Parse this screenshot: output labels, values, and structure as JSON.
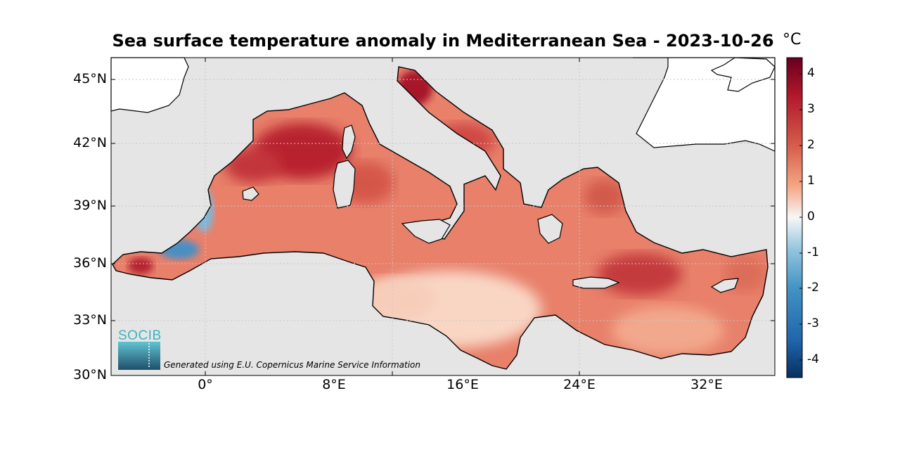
{
  "figure": {
    "title": "Sea surface temperature anomaly in Mediterranean Sea - 2023-10-26",
    "colorbar_unit": "°C",
    "credit": "Generated using E.U. Copernicus Marine Service Information",
    "logo_text": "SOCIB"
  },
  "axes": {
    "lat_ticks": [
      "45°N",
      "42°N",
      "39°N",
      "36°N",
      "33°N",
      "30°N"
    ],
    "lon_ticks": [
      "0°",
      "8°E",
      "16°E",
      "24°E",
      "32°E"
    ],
    "colorbar_ticks": [
      "4",
      "3",
      "2",
      "1",
      "0",
      "-1",
      "-2",
      "-3",
      "-4"
    ],
    "colorbar_range": [
      -4.5,
      4.5
    ],
    "grid": "dotted"
  },
  "colors": {
    "land": "#ffffff",
    "no_data": "#e5e5e5",
    "warm_strong": "#a50f2a",
    "warm": "#d6604d",
    "warm_light": "#f4a582",
    "neutral": "#f7f7f7",
    "cool_light": "#92c5de",
    "cool": "#4393c3",
    "cool_strong": "#053061"
  },
  "anomaly_regions": {
    "western_mediterranean": "strong warm (+3 to +4 °C)",
    "adriatic_north": "strong warm (+3.5 to +4 °C)",
    "alboran_east_coast_spain": "cold (-1 to -2 °C)",
    "alboran_west": "strong warm (+3 °C)",
    "libyan_coast": "weak warm (+0.5 to +1 °C)",
    "aegean_levantine": "warm (+2 to +3 °C)"
  }
}
